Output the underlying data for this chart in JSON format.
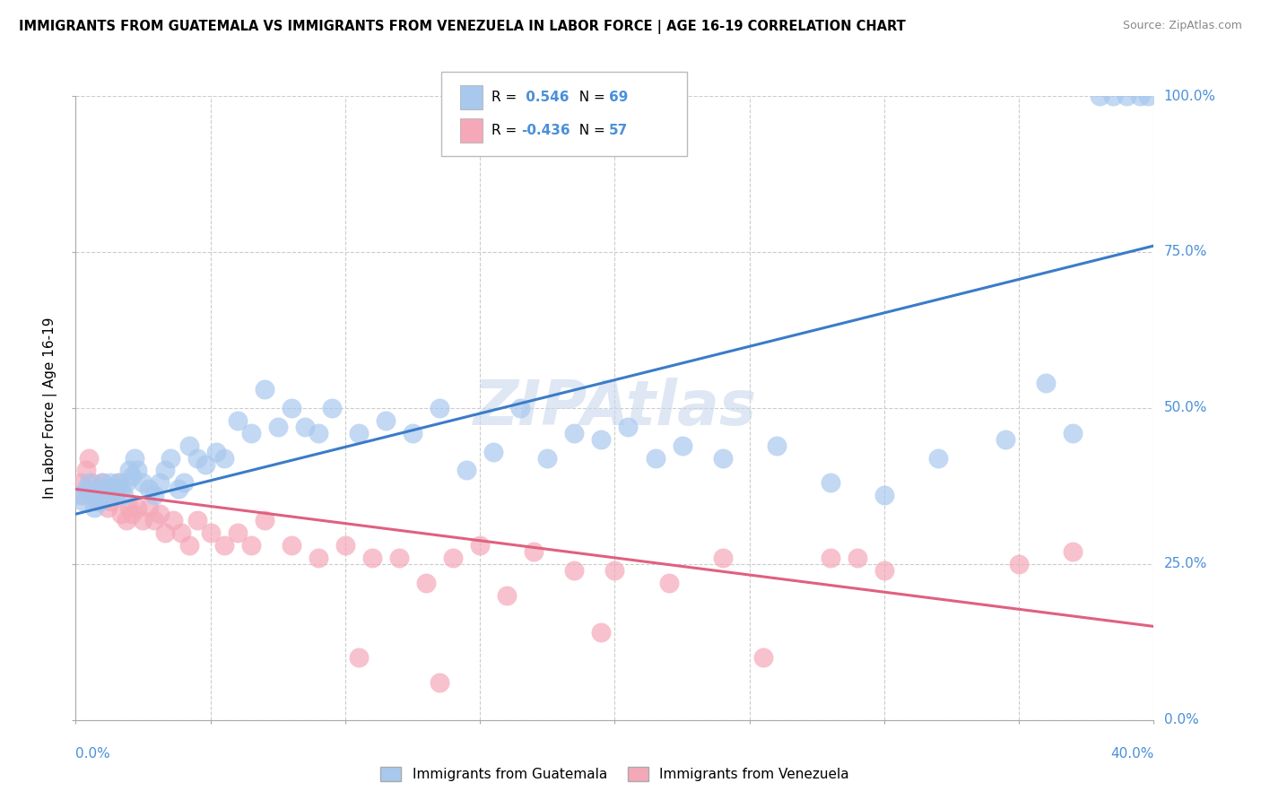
{
  "title": "IMMIGRANTS FROM GUATEMALA VS IMMIGRANTS FROM VENEZUELA IN LABOR FORCE | AGE 16-19 CORRELATION CHART",
  "source": "Source: ZipAtlas.com",
  "ylabel_label": "In Labor Force | Age 16-19",
  "xmin": 0.0,
  "xmax": 40.0,
  "ymin": 0.0,
  "ymax": 100.0,
  "R_guatemala": 0.546,
  "N_guatemala": 69,
  "R_venezuela": -0.436,
  "N_venezuela": 57,
  "color_guatemala": "#a8c8ee",
  "color_venezuela": "#f4a8b8",
  "trendline_color_guatemala": "#3a7cc8",
  "trendline_color_venezuela": "#e06080",
  "legend_entries": [
    "Immigrants from Guatemala",
    "Immigrants from Venezuela"
  ],
  "trendline_guat_x0": 0.0,
  "trendline_guat_y0": 33.0,
  "trendline_guat_x1": 40.0,
  "trendline_guat_y1": 76.0,
  "trendline_vene_x0": 0.0,
  "trendline_vene_y0": 37.0,
  "trendline_vene_x1": 40.0,
  "trendline_vene_y1": 15.0,
  "guatemala_x": [
    0.2,
    0.3,
    0.4,
    0.5,
    0.6,
    0.7,
    0.8,
    0.9,
    1.0,
    1.1,
    1.2,
    1.3,
    1.4,
    1.5,
    1.6,
    1.7,
    1.8,
    1.9,
    2.0,
    2.1,
    2.2,
    2.3,
    2.5,
    2.7,
    2.9,
    3.1,
    3.3,
    3.5,
    3.8,
    4.0,
    4.2,
    4.5,
    4.8,
    5.2,
    5.5,
    6.0,
    6.5,
    7.0,
    7.5,
    8.0,
    8.5,
    9.0,
    9.5,
    10.5,
    11.5,
    12.5,
    13.5,
    14.5,
    15.5,
    16.5,
    17.5,
    18.5,
    19.5,
    20.5,
    21.5,
    22.5,
    24.0,
    26.0,
    28.0,
    30.0,
    32.0,
    34.5,
    36.0,
    37.0,
    38.0,
    38.5,
    39.0,
    39.5,
    39.8
  ],
  "guatemala_y": [
    36,
    35,
    37,
    38,
    36,
    34,
    36,
    35,
    38,
    37,
    36,
    38,
    37,
    36,
    38,
    37,
    36,
    38,
    40,
    39,
    42,
    40,
    38,
    37,
    36,
    38,
    40,
    42,
    37,
    38,
    44,
    42,
    41,
    43,
    42,
    48,
    46,
    53,
    47,
    50,
    47,
    46,
    50,
    46,
    48,
    46,
    50,
    40,
    43,
    50,
    42,
    46,
    45,
    47,
    42,
    44,
    42,
    44,
    38,
    36,
    42,
    45,
    54,
    46,
    100,
    100,
    100,
    100,
    100
  ],
  "venezuela_x": [
    0.2,
    0.3,
    0.4,
    0.5,
    0.6,
    0.7,
    0.8,
    0.9,
    1.0,
    1.1,
    1.2,
    1.3,
    1.4,
    1.5,
    1.6,
    1.7,
    1.9,
    2.0,
    2.1,
    2.3,
    2.5,
    2.7,
    2.9,
    3.1,
    3.3,
    3.6,
    3.9,
    4.2,
    4.5,
    5.0,
    5.5,
    6.0,
    6.5,
    7.0,
    8.0,
    9.0,
    10.0,
    11.0,
    12.0,
    13.0,
    14.0,
    15.0,
    16.0,
    17.0,
    18.5,
    20.0,
    22.0,
    24.0,
    25.5,
    28.0,
    29.0,
    30.0,
    35.0,
    37.0,
    10.5,
    13.5,
    19.5
  ],
  "venezuela_y": [
    38,
    36,
    40,
    42,
    38,
    36,
    35,
    37,
    38,
    36,
    34,
    35,
    37,
    36,
    38,
    33,
    32,
    34,
    33,
    34,
    32,
    34,
    32,
    33,
    30,
    32,
    30,
    28,
    32,
    30,
    28,
    30,
    28,
    32,
    28,
    26,
    28,
    26,
    26,
    22,
    26,
    28,
    20,
    27,
    24,
    24,
    22,
    26,
    10,
    26,
    26,
    24,
    25,
    27,
    10,
    6,
    14
  ]
}
